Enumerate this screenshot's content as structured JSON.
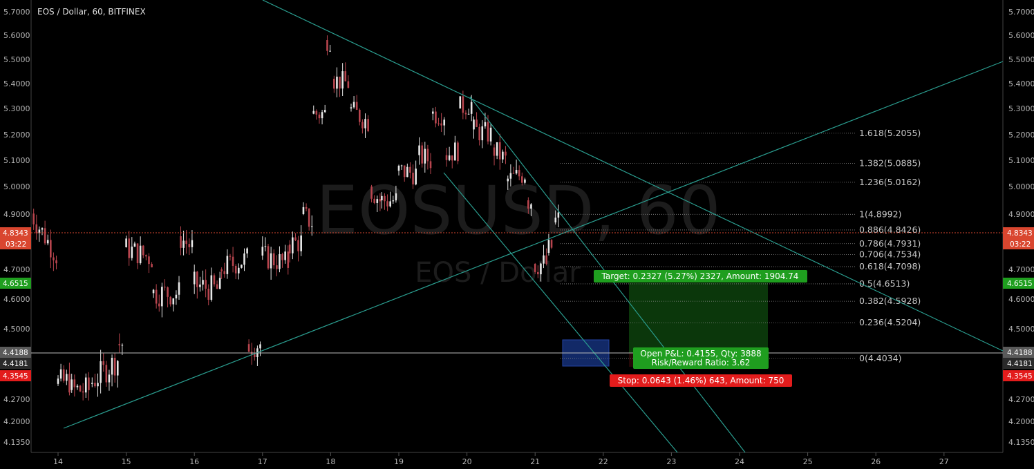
{
  "header": {
    "title": "EOS / Dollar, 60, BITFINEX"
  },
  "watermark": {
    "symbol": "EOSUSD, 60",
    "name": "EOS / Dollar"
  },
  "colors": {
    "background": "#000000",
    "up_candle": "#e8e8e8",
    "down_candle": "#b8454e",
    "trend_line": "#2a9d8f",
    "fib_line": "#8a8a8a",
    "price_badge": "#d9462f",
    "target_badge": "#1f9e1f",
    "stop_badge": "#e31c1c",
    "gray_badge": "#5a5a5a"
  },
  "badges": {
    "current_price": "4.8343",
    "countdown": "03:22",
    "target_price": "4.6515",
    "entry_price": "4.4188",
    "entry_price_2": "4.4181",
    "stop_price": "4.3545"
  },
  "position": {
    "target_label": "Target: 0.2327 (5.27%) 2327, Amount: 1904.74",
    "pnl_line1": "Open P&L: 0.4155, Qty: 3888",
    "pnl_line2": "Risk/Reward Ratio: 3.62",
    "stop_label": "Stop: 0.0643 (1.46%) 643, Amount: 750",
    "entry": 4.4188,
    "target": 4.6515,
    "stop": 4.3545
  },
  "chart_data": {
    "type": "candlestick",
    "title": "EOS / Dollar, 60, BITFINEX",
    "y_ticks": [
      "5.7000",
      "5.6000",
      "5.5000",
      "5.4000",
      "5.3000",
      "5.2000",
      "5.1000",
      "5.0000",
      "4.9000",
      "4.7000",
      "4.6000",
      "4.5000",
      "4.2700",
      "4.2000",
      "4.1350"
    ],
    "x_ticks": [
      "14",
      "15",
      "16",
      "17",
      "18",
      "19",
      "20",
      "21",
      "22",
      "23",
      "24",
      "25",
      "26",
      "27"
    ],
    "ylim": [
      4.1,
      5.72
    ],
    "grid": false,
    "fib_levels": [
      {
        "label": "1.618(5.2055)",
        "value": 5.2055
      },
      {
        "label": "1.382(5.0885)",
        "value": 5.0885
      },
      {
        "label": "1.236(5.0162)",
        "value": 5.0162
      },
      {
        "label": "1(4.8992)",
        "value": 4.8992
      },
      {
        "label": "0.886(4.8426)",
        "value": 4.8426
      },
      {
        "label": "0.786(4.7931)",
        "value": 4.7931
      },
      {
        "label": "0.706(4.7534)",
        "value": 4.7534
      },
      {
        "label": "0.618(4.7098)",
        "value": 4.7098
      },
      {
        "label": "0.5(4.6513)",
        "value": 4.6513
      },
      {
        "label": "0.382(4.5928)",
        "value": 4.5928
      },
      {
        "label": "0.236(4.5204)",
        "value": 4.5204
      },
      {
        "label": "0(4.4034)",
        "value": 4.4034
      }
    ],
    "ohlc_hourly_approx": [
      [
        13.6,
        5.0,
        4.92
      ],
      [
        14.0,
        4.75,
        4.32
      ],
      [
        14.2,
        4.33,
        4.3
      ],
      [
        14.5,
        4.3,
        4.32
      ],
      [
        14.9,
        4.4,
        4.45
      ],
      [
        15.0,
        4.45,
        4.78
      ],
      [
        15.4,
        4.74,
        4.62
      ],
      [
        15.8,
        4.62,
        4.82
      ],
      [
        16.0,
        4.78,
        4.65
      ],
      [
        16.4,
        4.63,
        4.7
      ],
      [
        16.8,
        4.74,
        4.45
      ],
      [
        17.0,
        4.45,
        4.75
      ],
      [
        17.4,
        4.72,
        4.79
      ],
      [
        17.6,
        4.8,
        4.9
      ],
      [
        17.75,
        4.87,
        5.28
      ],
      [
        17.95,
        5.28,
        5.58
      ],
      [
        18.05,
        5.58,
        5.42
      ],
      [
        18.3,
        5.4,
        5.3
      ],
      [
        18.6,
        5.25,
        5.0
      ],
      [
        18.75,
        4.95,
        4.95
      ],
      [
        19.0,
        4.95,
        5.06
      ],
      [
        19.3,
        5.05,
        5.12
      ],
      [
        19.5,
        5.1,
        5.28
      ],
      [
        19.7,
        5.28,
        5.12
      ],
      [
        19.9,
        5.14,
        5.3
      ],
      [
        20.1,
        5.32,
        5.22
      ],
      [
        20.4,
        5.2,
        5.15
      ],
      [
        20.6,
        5.1,
        5.02
      ],
      [
        20.9,
        5.05,
        4.95
      ],
      [
        21.0,
        4.95,
        4.72
      ],
      [
        21.2,
        4.72,
        4.76
      ],
      [
        21.3,
        4.78,
        4.87
      ],
      [
        21.4,
        4.88,
        4.83
      ]
    ]
  }
}
